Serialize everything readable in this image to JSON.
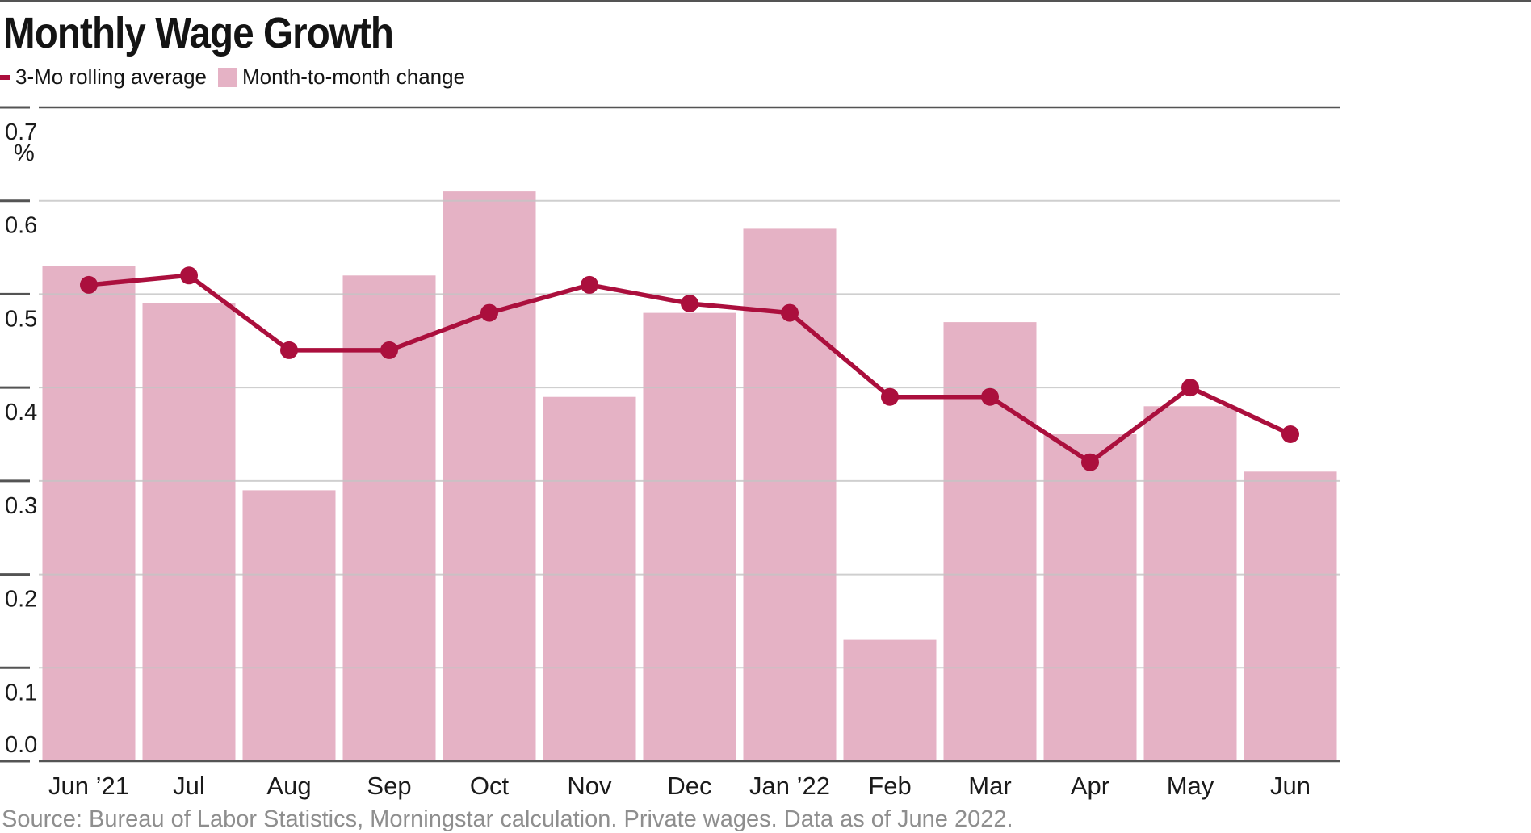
{
  "page": {
    "title": "Monthly Wage Growth",
    "source_note": "Source: Bureau of Labor Statistics, Morningstar calculation. Private wages. Data as of June 2022."
  },
  "legend": {
    "line_label": "3-Mo rolling average",
    "bar_label": "Month-to-month change"
  },
  "colors": {
    "line": "#ab0f3d",
    "bar": "#e5b2c5",
    "grid": "#c4c4c4",
    "axis": "#545454",
    "top_border": "#555555",
    "text": "#1a1a1a",
    "source_text": "#8e8e8e"
  },
  "chart_data": {
    "type": "bar",
    "title": "Monthly Wage Growth",
    "categories": [
      "Jun ’21",
      "Jul",
      "Aug",
      "Sep",
      "Oct",
      "Nov",
      "Dec",
      "Jan ’22",
      "Feb",
      "Mar",
      "Apr",
      "May",
      "Jun"
    ],
    "series": [
      {
        "name": "Month-to-month change",
        "type": "bar",
        "values": [
          0.53,
          0.49,
          0.29,
          0.52,
          0.61,
          0.39,
          0.48,
          0.57,
          0.13,
          0.47,
          0.35,
          0.38,
          0.31
        ]
      },
      {
        "name": "3-Mo rolling average",
        "type": "line",
        "values": [
          0.51,
          0.52,
          0.44,
          0.44,
          0.48,
          0.51,
          0.49,
          0.48,
          0.39,
          0.39,
          0.32,
          0.4,
          0.35
        ]
      }
    ],
    "xlabel": "",
    "ylabel_unit": "%",
    "ylim": [
      0,
      0.7
    ],
    "ytick_step": 0.1,
    "ytick_labels": [
      "0.0",
      "0.1",
      "0.2",
      "0.3",
      "0.4",
      "0.5",
      "0.6",
      "0.7"
    ],
    "grid": true,
    "legend_position": "top-left"
  }
}
